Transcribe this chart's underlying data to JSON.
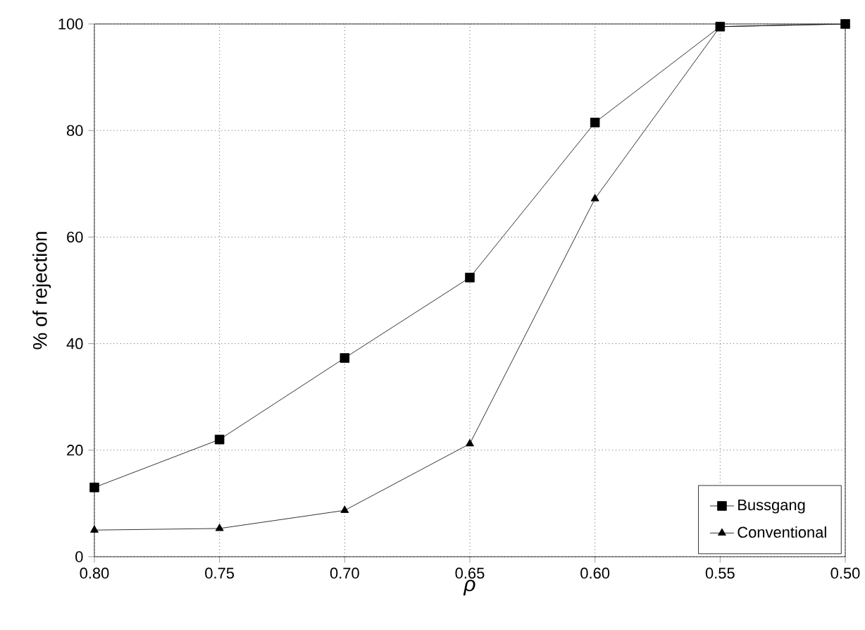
{
  "chart_data": {
    "type": "line",
    "xlabel": "ρ",
    "ylabel": "% of rejection",
    "x": [
      0.8,
      0.75,
      0.7,
      0.65,
      0.6,
      0.55,
      0.5
    ],
    "xlim": [
      0.8,
      0.5
    ],
    "ylim": [
      0,
      100
    ],
    "xticks": [
      {
        "value": 0.8,
        "label": "0.80"
      },
      {
        "value": 0.75,
        "label": "0.75"
      },
      {
        "value": 0.7,
        "label": "0.70"
      },
      {
        "value": 0.65,
        "label": "0.65"
      },
      {
        "value": 0.6,
        "label": "0.60"
      },
      {
        "value": 0.55,
        "label": "0.55"
      },
      {
        "value": 0.5,
        "label": "0.50"
      }
    ],
    "yticks": [
      0,
      20,
      40,
      60,
      80,
      100
    ],
    "grid": true,
    "legend": "bottom right",
    "line_style": "solid",
    "series": [
      {
        "name": "Bussgang",
        "color": "#000000",
        "marker": "square",
        "values": [
          13,
          22,
          37.3,
          52.4,
          81.5,
          99.5,
          100
        ]
      },
      {
        "name": "Conventional",
        "color": "#000000",
        "marker": "triangle",
        "values": [
          5,
          5.3,
          8.7,
          21.2,
          67.2,
          99.5,
          100
        ]
      }
    ]
  }
}
